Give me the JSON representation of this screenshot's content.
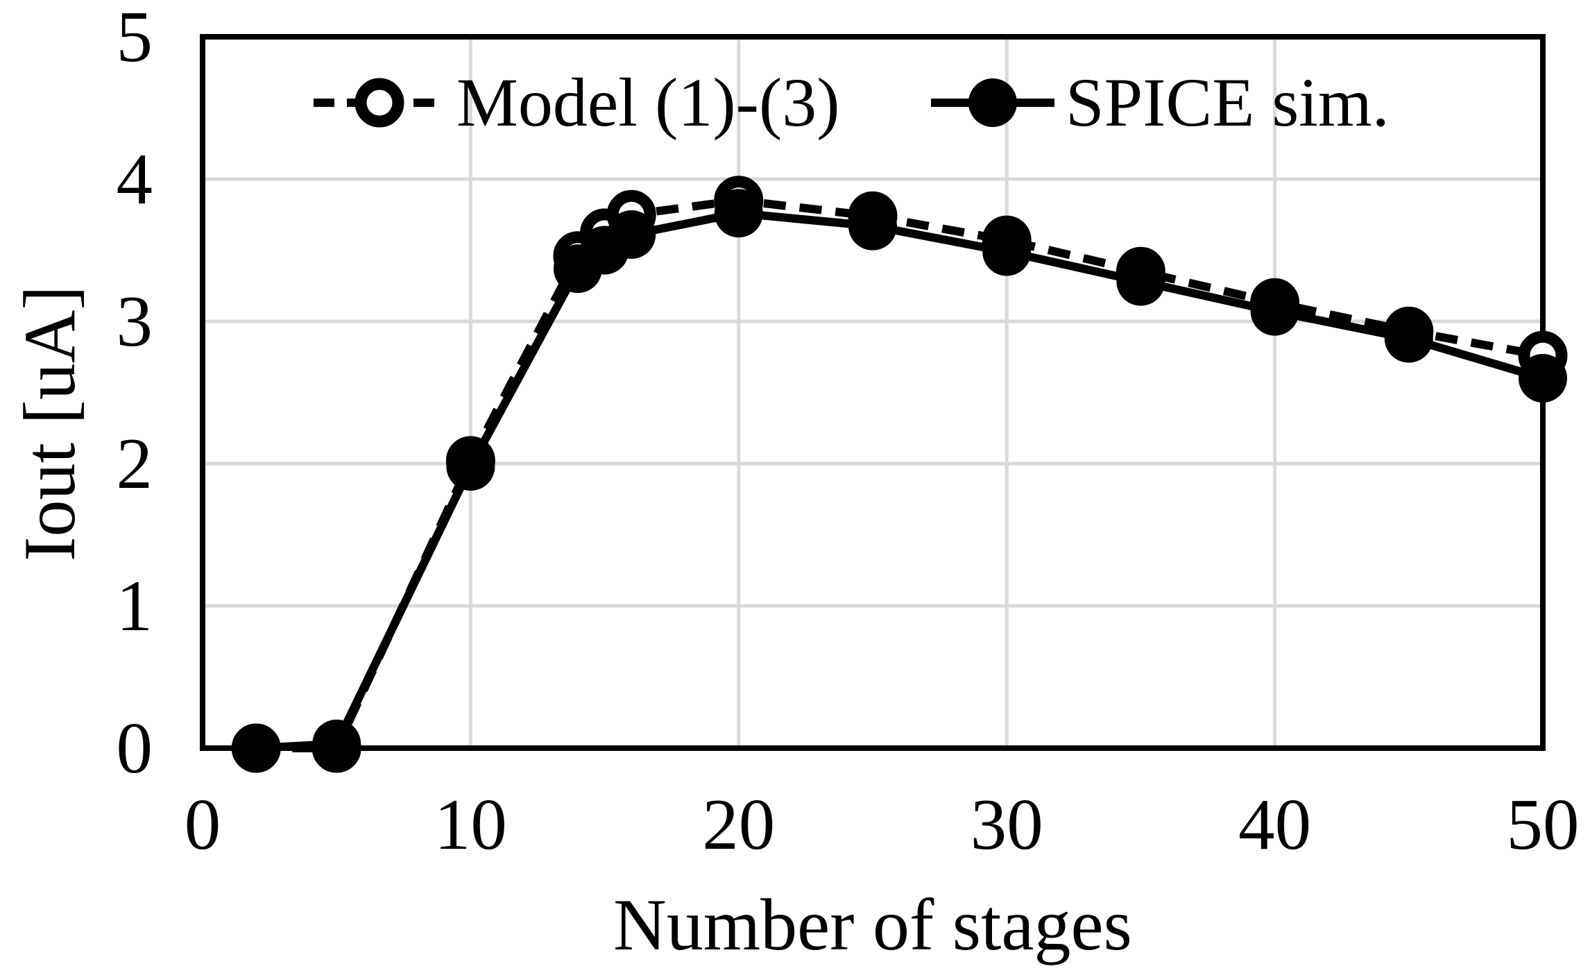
{
  "figure": {
    "x_axis_title": "Number of stages",
    "y_axis_title": "Iout [uA]"
  },
  "colors": {
    "series": "#000000",
    "gridline": "#d9d9d9",
    "frame": "#000000",
    "background": "#ffffff"
  },
  "chart_data": {
    "type": "line",
    "title": "",
    "xlabel": "Number of stages",
    "ylabel": "Iout [uA]",
    "xlim": [
      0,
      50
    ],
    "ylim": [
      0,
      5
    ],
    "x_ticks": [
      0,
      10,
      20,
      30,
      40,
      50
    ],
    "y_ticks": [
      0,
      1,
      2,
      3,
      4,
      5
    ],
    "grid": true,
    "legend_position": "top-inside",
    "x": [
      2,
      5,
      10,
      14,
      15,
      16,
      20,
      25,
      30,
      35,
      40,
      45,
      50
    ],
    "series": [
      {
        "name": "Model (1)-(3)",
        "line_style": "dashed",
        "marker": "open-circle",
        "values": [
          0.0,
          0.0,
          2.02,
          3.46,
          3.62,
          3.75,
          3.85,
          3.74,
          3.57,
          3.35,
          3.13,
          2.93,
          2.76
        ]
      },
      {
        "name": "SPICE sim.",
        "line_style": "solid",
        "marker": "filled-circle",
        "values": [
          0.0,
          0.03,
          1.98,
          3.37,
          3.5,
          3.61,
          3.76,
          3.67,
          3.49,
          3.28,
          3.07,
          2.88,
          2.6
        ]
      }
    ]
  }
}
